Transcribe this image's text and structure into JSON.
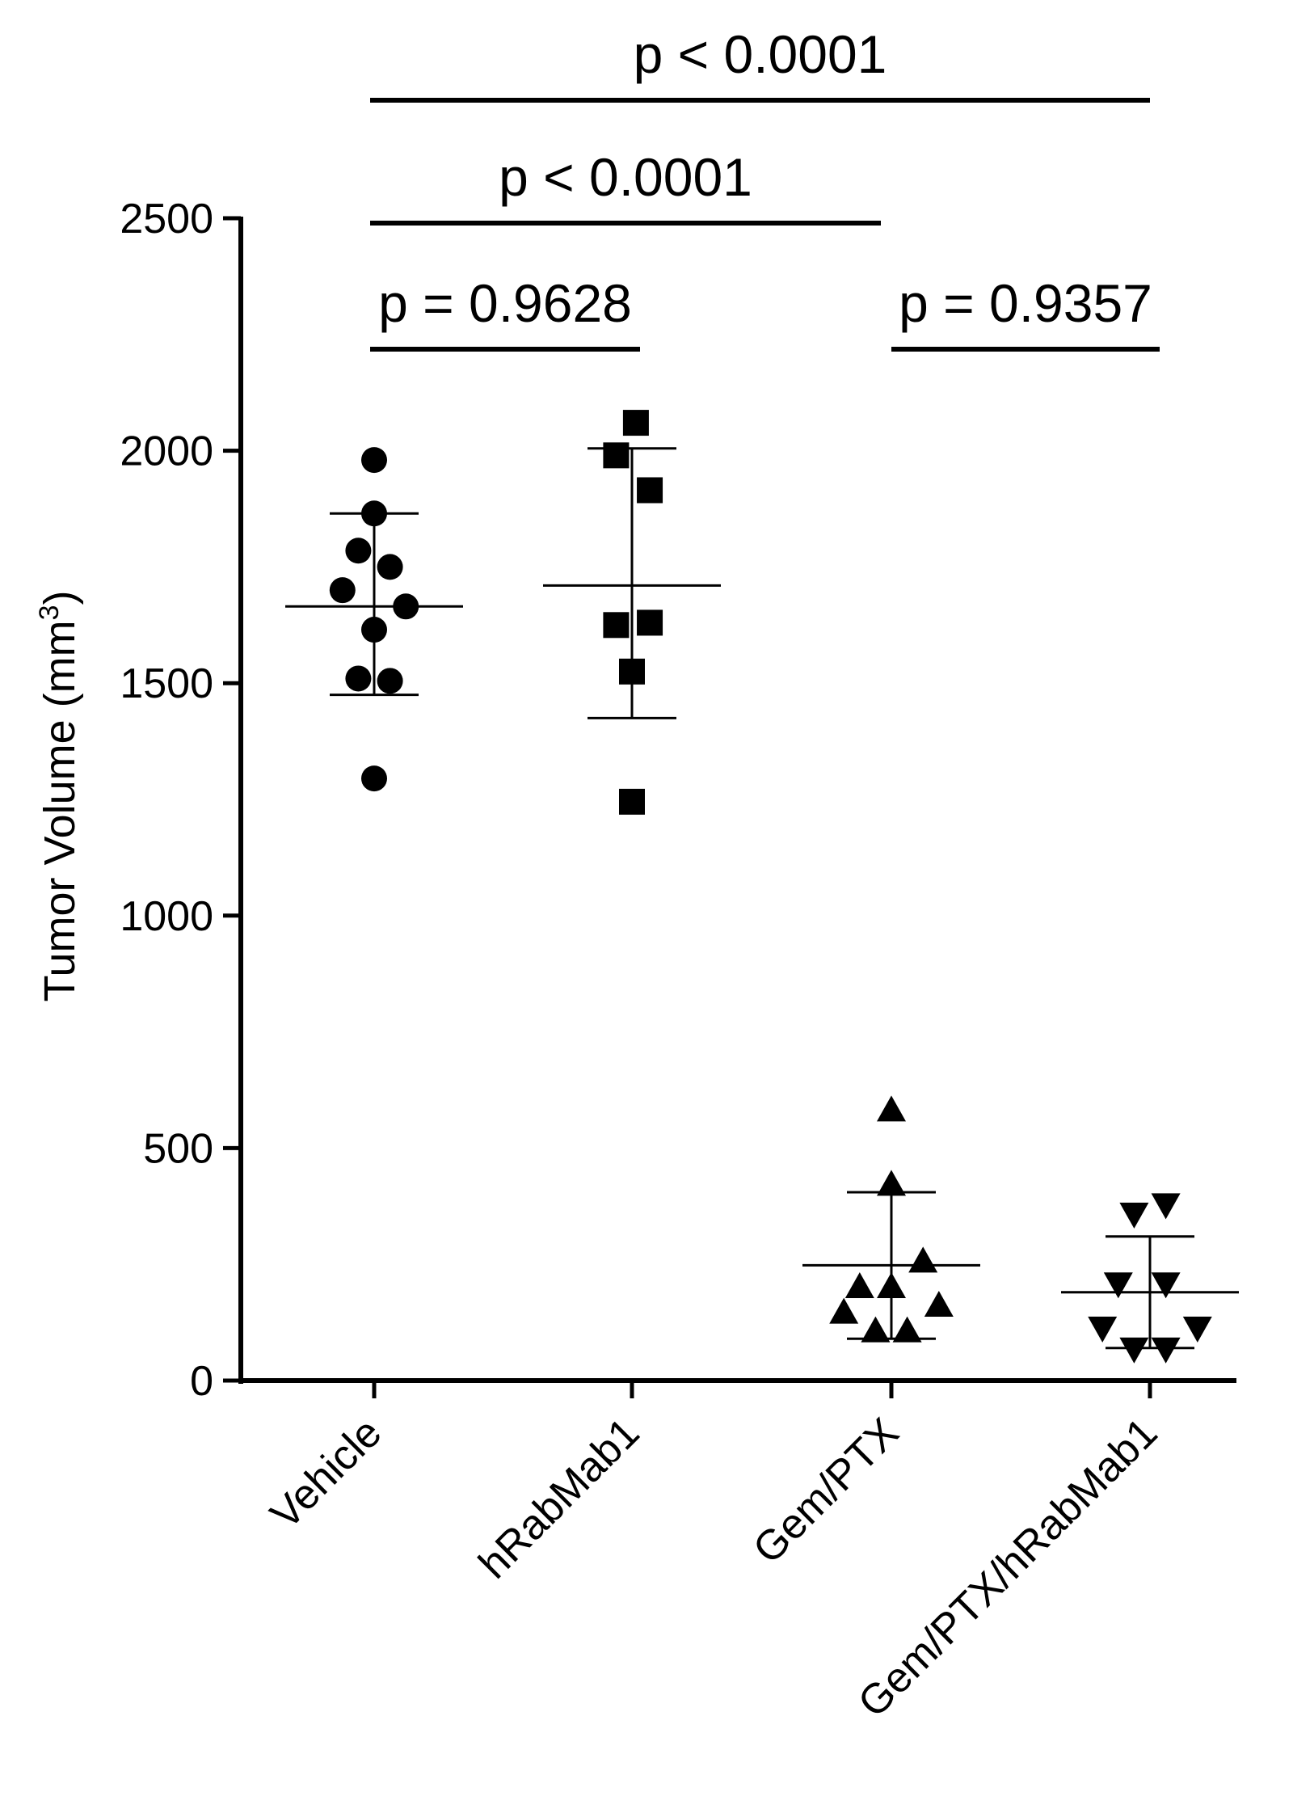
{
  "chart_data": {
    "type": "scatter",
    "subtype": "dot plot with mean and SD",
    "title": "",
    "xlabel": "",
    "ylabel": "Tumor Volume (mm",
    "ylabel_superscript": "3",
    "ylabel_close": ")",
    "ylim": [
      0,
      2500
    ],
    "yticks": [
      0,
      500,
      1000,
      1500,
      2000,
      2500
    ],
    "ytick_labels": [
      "0",
      "500",
      "1000",
      "1500",
      "2000",
      "2500"
    ],
    "grid": false,
    "categories": [
      "Vehicle",
      "hRabMab1",
      "Gem/PTX",
      "Gem/PTX/hRabMab1"
    ],
    "series": [
      {
        "name": "Vehicle",
        "marker": "circle",
        "points": [
          {
            "dx": 0,
            "y": 1980
          },
          {
            "dx": 0,
            "y": 1865
          },
          {
            "dx": -0.08,
            "y": 1785
          },
          {
            "dx": 0.08,
            "y": 1750
          },
          {
            "dx": -0.16,
            "y": 1700
          },
          {
            "dx": 0.16,
            "y": 1665
          },
          {
            "dx": 0,
            "y": 1615
          },
          {
            "dx": -0.08,
            "y": 1510
          },
          {
            "dx": 0.08,
            "y": 1505
          },
          {
            "dx": 0,
            "y": 1295
          }
        ],
        "mean": 1665,
        "sd_low": 1475,
        "sd_high": 1865
      },
      {
        "name": "hRabMab1",
        "marker": "square",
        "points": [
          {
            "dx": 0.02,
            "y": 2060
          },
          {
            "dx": -0.08,
            "y": 1990
          },
          {
            "dx": 0.09,
            "y": 1915
          },
          {
            "dx": -0.08,
            "y": 1625
          },
          {
            "dx": 0.09,
            "y": 1630
          },
          {
            "dx": 0,
            "y": 1525
          },
          {
            "dx": 0,
            "y": 1245
          }
        ],
        "mean": 1710,
        "sd_low": 1425,
        "sd_high": 2005
      },
      {
        "name": "Gem/PTX",
        "marker": "triangle-up",
        "points": [
          {
            "dx": 0,
            "y": 580
          },
          {
            "dx": 0,
            "y": 420
          },
          {
            "dx": 0.16,
            "y": 255
          },
          {
            "dx": -0.16,
            "y": 200
          },
          {
            "dx": 0,
            "y": 200
          },
          {
            "dx": 0.24,
            "y": 160
          },
          {
            "dx": -0.24,
            "y": 145
          },
          {
            "dx": -0.08,
            "y": 105
          },
          {
            "dx": 0.08,
            "y": 105
          }
        ],
        "mean": 248,
        "sd_low": 90,
        "sd_high": 405
      },
      {
        "name": "Gem/PTX/hRabMab1",
        "marker": "triangle-down",
        "points": [
          {
            "dx": 0.08,
            "y": 380
          },
          {
            "dx": -0.08,
            "y": 360
          },
          {
            "dx": -0.16,
            "y": 210
          },
          {
            "dx": 0.08,
            "y": 210
          },
          {
            "dx": -0.24,
            "y": 115
          },
          {
            "dx": 0.24,
            "y": 115
          },
          {
            "dx": -0.08,
            "y": 70
          },
          {
            "dx": 0.08,
            "y": 70
          }
        ],
        "mean": 190,
        "sd_low": 70,
        "sd_high": 310
      }
    ],
    "annotations": [
      {
        "text": "p < 0.0001",
        "from": 0,
        "to": 3
      },
      {
        "text": "p < 0.0001",
        "from": 0,
        "to": 2
      },
      {
        "text": "p = 0.9628",
        "from": 0,
        "to": 1
      },
      {
        "text": "p = 0.9357",
        "from": 2,
        "to": 3
      }
    ]
  }
}
